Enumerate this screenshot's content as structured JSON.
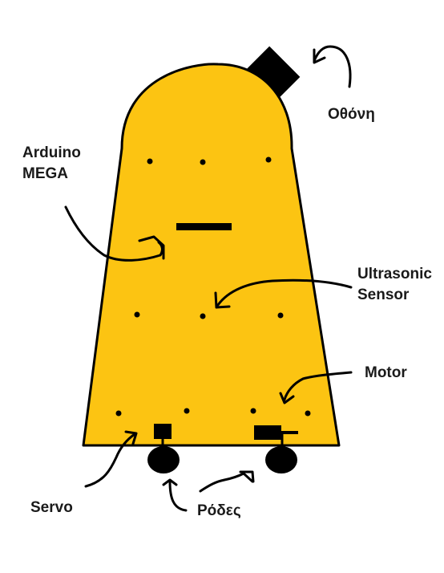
{
  "labels": {
    "screen": "Οθόνη",
    "arduino_line1": "Arduino",
    "arduino_line2": "MEGA",
    "ultrasonic_line1": "Ultrasonic",
    "ultrasonic_line2": "Sensor",
    "motor": "Motor",
    "servo": "Servo",
    "wheels": "Ρόδες"
  },
  "colors": {
    "body_fill": "#FCC412",
    "outline": "#000000",
    "text": "#1a1a1a"
  }
}
